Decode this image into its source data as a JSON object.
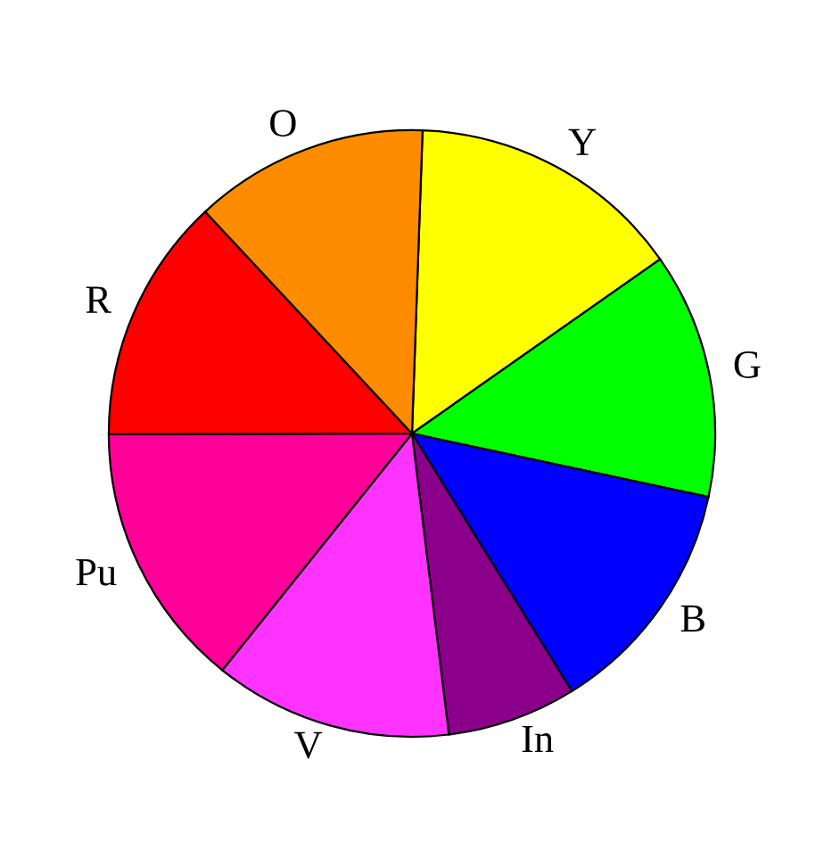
{
  "chart_data": {
    "type": "pie",
    "categories": [
      "Y",
      "G",
      "B",
      "In",
      "V",
      "Pu",
      "R",
      "O"
    ],
    "values": [
      14.7,
      13.1,
      12.8,
      6.9,
      12.7,
      14.2,
      13.1,
      12.5
    ],
    "colors": [
      "#ffff00",
      "#00ff00",
      "#0000ff",
      "#8b008b",
      "#ff33ff",
      "#ff0099",
      "#ff0000",
      "#ff8c00"
    ]
  }
}
